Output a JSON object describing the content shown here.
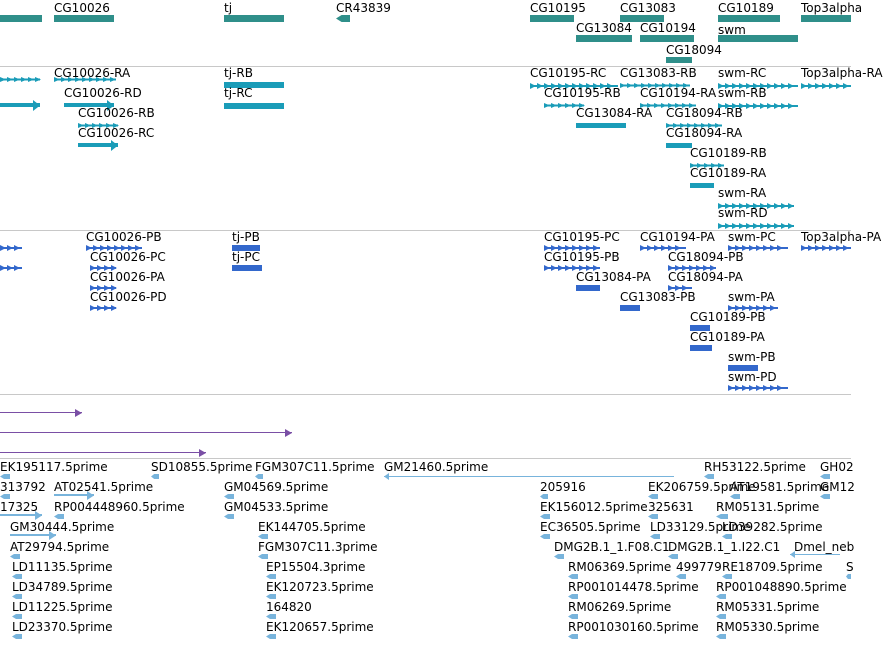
{
  "colors": {
    "gene": "#2f8f8a",
    "transcript": "#1a9cb8",
    "protein": "#3368cc",
    "insertion": "#7a4fa5",
    "est": "#78b4dc",
    "separator": "#c8c8c8"
  },
  "tracks": {
    "genes": {
      "features": [
        {
          "label": ""
        },
        {
          "label": "CG10026"
        },
        {
          "label": "tj"
        },
        {
          "label": "CR43839"
        },
        {
          "label": "CG10195"
        },
        {
          "label": "CG13083"
        },
        {
          "label": "CG10189"
        },
        {
          "label": "Top3alpha"
        },
        {
          "label": "CG13084"
        },
        {
          "label": "CG10194"
        },
        {
          "label": "swm"
        },
        {
          "label": "CG18094"
        }
      ]
    },
    "transcripts": {
      "features": [
        {
          "label": ""
        },
        {
          "label": ""
        },
        {
          "label": "CG10026-RA"
        },
        {
          "label": "CG10026-RD"
        },
        {
          "label": "CG10026-RB"
        },
        {
          "label": "CG10026-RC"
        },
        {
          "label": "tj-RB"
        },
        {
          "label": "tj-RC"
        },
        {
          "label": "CG10195-RC"
        },
        {
          "label": "CG10195-RB"
        },
        {
          "label": "CG13083-RB"
        },
        {
          "label": "CG10194-RA"
        },
        {
          "label": "swm-RC"
        },
        {
          "label": "swm-RB"
        },
        {
          "label": "Top3alpha-RA"
        },
        {
          "label": "CG13084-RA"
        },
        {
          "label": "CG18094-RB"
        },
        {
          "label": "CG18094-RA"
        },
        {
          "label": "CG10189-RB"
        },
        {
          "label": "CG10189-RA"
        },
        {
          "label": "swm-RA"
        },
        {
          "label": "swm-RD"
        }
      ]
    },
    "proteins": {
      "features": [
        {
          "label": ""
        },
        {
          "label": ""
        },
        {
          "label": "CG10026-PB"
        },
        {
          "label": "CG10026-PC"
        },
        {
          "label": "CG10026-PA"
        },
        {
          "label": "CG10026-PD"
        },
        {
          "label": "tj-PB"
        },
        {
          "label": "tj-PC"
        },
        {
          "label": "CG10195-PC"
        },
        {
          "label": "CG10195-PB"
        },
        {
          "label": "CG10194-PA"
        },
        {
          "label": "CG18094-PB"
        },
        {
          "label": "CG13084-PA"
        },
        {
          "label": "CG18094-PA"
        },
        {
          "label": "CG13083-PB"
        },
        {
          "label": "swm-PC"
        },
        {
          "label": "swm-PA"
        },
        {
          "label": "CG10189-PB"
        },
        {
          "label": "CG10189-PA"
        },
        {
          "label": "swm-PB"
        },
        {
          "label": "swm-PD"
        },
        {
          "label": "Top3alpha-PA"
        }
      ]
    },
    "insertions": {
      "features": [
        {
          "label": ""
        },
        {
          "label": ""
        },
        {
          "label": ""
        }
      ]
    },
    "ests": {
      "features": [
        {
          "label": "EK195117.5prime"
        },
        {
          "label": "SD10855.5prime"
        },
        {
          "label": "FGM307C11.5prime"
        },
        {
          "label": "GM21460.5prime"
        },
        {
          "label": "RH53122.5prime"
        },
        {
          "label": "GH02"
        },
        {
          "label": "313792"
        },
        {
          "label": "AT02541.5prime"
        },
        {
          "label": "GM04569.5prime"
        },
        {
          "label": "205916"
        },
        {
          "label": "EK206759.5prime"
        },
        {
          "label": "AT19581.5prime"
        },
        {
          "label": "GM12"
        },
        {
          "label": "17325"
        },
        {
          "label": "RP004448960.5prime"
        },
        {
          "label": "GM04533.5prime"
        },
        {
          "label": "EK156012.5prime"
        },
        {
          "label": "325631"
        },
        {
          "label": "RM05131.5prime"
        },
        {
          "label": "GM30444.5prime"
        },
        {
          "label": "EK144705.5prime"
        },
        {
          "label": "EC36505.5prime"
        },
        {
          "label": "LD33129.5prime"
        },
        {
          "label": "LD39282.5prime"
        },
        {
          "label": "AT29794.5prime"
        },
        {
          "label": "FGM307C11.3prime"
        },
        {
          "label": "DMG2B.1_1.F08.C1"
        },
        {
          "label": "DMG2B.1_1.I22.C1"
        },
        {
          "label": "Dmel_neb"
        },
        {
          "label": "LD11135.5prime"
        },
        {
          "label": "EP15504.3prime"
        },
        {
          "label": "RM06369.5prime"
        },
        {
          "label": "499779"
        },
        {
          "label": "RE18709.5prime"
        },
        {
          "label": "S"
        },
        {
          "label": "LD34789.5prime"
        },
        {
          "label": "EK120723.5prime"
        },
        {
          "label": "RP001014478.5prime"
        },
        {
          "label": "RP001048890.5prime"
        },
        {
          "label": "LD11225.5prime"
        },
        {
          "label": "164820"
        },
        {
          "label": "RM06269.5prime"
        },
        {
          "label": "RM05331.5prime"
        },
        {
          "label": "LD23370.5prime"
        },
        {
          "label": "EK120657.5prime"
        },
        {
          "label": "RP001030160.5prime"
        },
        {
          "label": "RM05330.5prime"
        }
      ]
    }
  }
}
